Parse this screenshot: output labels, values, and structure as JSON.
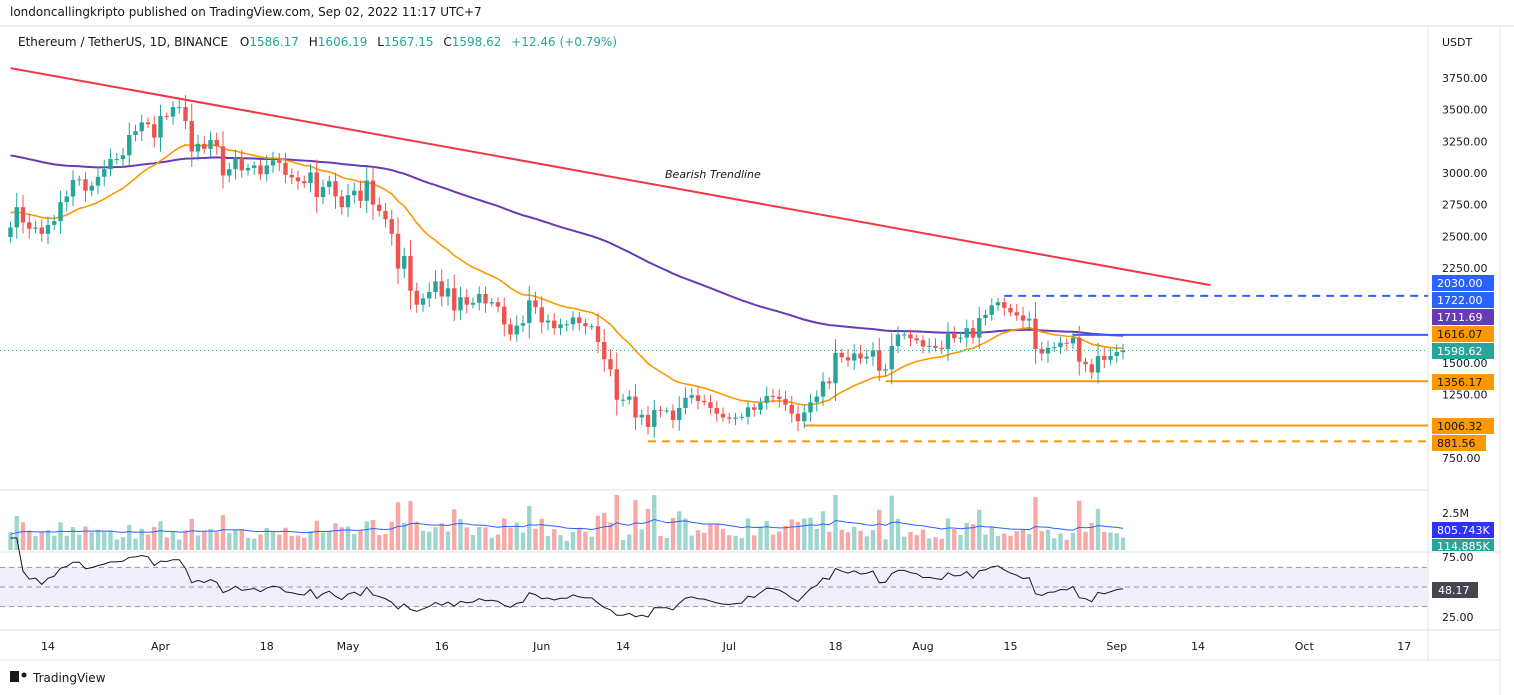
{
  "publisher_line": "londoncallingkripto published on TradingView.com, Sep 02, 2022 11:17 UTC+7",
  "footer_brand": "TradingView",
  "legend": {
    "symbol": "Ethereum / TetherUS, 1D, BINANCE",
    "o_label": "O",
    "o": "1586.17",
    "h_label": "H",
    "h": "1606.19",
    "l_label": "L",
    "l": "1567.15",
    "c_label": "C",
    "c": "1598.62",
    "change": "+12.46 (+0.79%)"
  },
  "colors": {
    "up": "#26a69a",
    "down": "#ef5350",
    "ema": "#ff9800",
    "ma": "#673ab7",
    "trend": "#f23645",
    "blue": "#2962ff"
  },
  "chart_data": {
    "type": "candlestick",
    "currency": "USDT",
    "start_date": "2022-03-08",
    "closes": [
      2570,
      2730,
      2610,
      2560,
      2570,
      2520,
      2590,
      2620,
      2770,
      2815,
      2945,
      2950,
      2860,
      2900,
      2970,
      3030,
      3110,
      3110,
      3140,
      3300,
      3330,
      3400,
      3385,
      3280,
      3450,
      3445,
      3520,
      3520,
      3410,
      3170,
      3230,
      3190,
      3260,
      3210,
      2980,
      3030,
      3120,
      3020,
      3040,
      3060,
      2990,
      3060,
      3100,
      3080,
      2985,
      2965,
      2935,
      2920,
      3005,
      2810,
      2890,
      2935,
      2815,
      2730,
      2825,
      2860,
      2780,
      2940,
      2750,
      2700,
      2635,
      2520,
      2245,
      2345,
      2070,
      1960,
      2010,
      2060,
      2145,
      2025,
      2090,
      1915,
      2020,
      1960,
      1975,
      2045,
      1970,
      1980,
      1945,
      1805,
      1725,
      1795,
      1815,
      1995,
      1940,
      1820,
      1835,
      1775,
      1805,
      1805,
      1860,
      1815,
      1790,
      1790,
      1665,
      1530,
      1450,
      1210,
      1210,
      1235,
      1070,
      1090,
      995,
      1130,
      1125,
      1125,
      1050,
      1145,
      1225,
      1245,
      1200,
      1190,
      1145,
      1100,
      1070,
      1060,
      1070,
      1075,
      1150,
      1130,
      1185,
      1240,
      1235,
      1215,
      1170,
      1100,
      1040,
      1110,
      1190,
      1235,
      1355,
      1340,
      1580,
      1545,
      1520,
      1575,
      1535,
      1550,
      1600,
      1440,
      1450,
      1635,
      1725,
      1725,
      1695,
      1680,
      1630,
      1635,
      1620,
      1610,
      1730,
      1695,
      1700,
      1775,
      1700,
      1855,
      1880,
      1955,
      1980,
      1935,
      1900,
      1875,
      1835,
      1850,
      1610,
      1575,
      1620,
      1625,
      1660,
      1655,
      1700,
      1510,
      1490,
      1425,
      1555,
      1525,
      1555,
      1586,
      1599
    ],
    "first_open": 2495,
    "ema20_seed": 2700,
    "ma100_seed": 3150,
    "price_ticks": [
      "3750.00",
      "3500.00",
      "3250.00",
      "3000.00",
      "2750.00",
      "2500.00",
      "2250.00",
      "1500.00",
      "1250.00",
      "750.00"
    ],
    "x_ticks": [
      {
        "label": "14",
        "day": 6
      },
      {
        "label": "Apr",
        "day": 24
      },
      {
        "label": "18",
        "day": 41
      },
      {
        "label": "May",
        "day": 54
      },
      {
        "label": "16",
        "day": 69
      },
      {
        "label": "Jun",
        "day": 85
      },
      {
        "label": "14",
        "day": 98
      },
      {
        "label": "Jul",
        "day": 115
      },
      {
        "label": "18",
        "day": 132
      },
      {
        "label": "Aug",
        "day": 146
      },
      {
        "label": "15",
        "day": 160
      },
      {
        "label": "Sep",
        "day": 177
      },
      {
        "label": "14",
        "day": 190
      },
      {
        "label": "Oct",
        "day": 207
      },
      {
        "label": "17",
        "day": 223
      }
    ],
    "trendline": {
      "label": "Bearish Trendline",
      "from": {
        "day": 0,
        "price": 3828
      },
      "to": {
        "day": 192,
        "price": 2115
      }
    },
    "levels": [
      {
        "price": 2030,
        "from_day": 159,
        "style": "dashed",
        "color": "#2962ff",
        "label": "2030.00"
      },
      {
        "price": 1722,
        "from_day": 170,
        "style": "solid",
        "color": "#2962ff",
        "label": "1722.00"
      },
      {
        "price": 1356.17,
        "from_day": 140,
        "style": "solid",
        "color": "#ff9800",
        "label": "1356.17"
      },
      {
        "price": 1006.32,
        "from_day": 127,
        "style": "solid",
        "color": "#ff9800",
        "label": "1006.32"
      },
      {
        "price": 881.56,
        "from_day": 102,
        "style": "dashed",
        "color": "#ff9800",
        "label": "881.56"
      }
    ],
    "axis_tags": {
      "ma100": "1711.69",
      "ema20": "1616.07",
      "last": "1598.62"
    },
    "volume": {
      "scale_label": "2.5M",
      "ma_label": "805.743K",
      "last_label": "114.885K"
    },
    "rsi": {
      "ticks": [
        "75.00",
        "25.00"
      ],
      "last": "48.17",
      "upper": 70,
      "lower": 30
    }
  }
}
